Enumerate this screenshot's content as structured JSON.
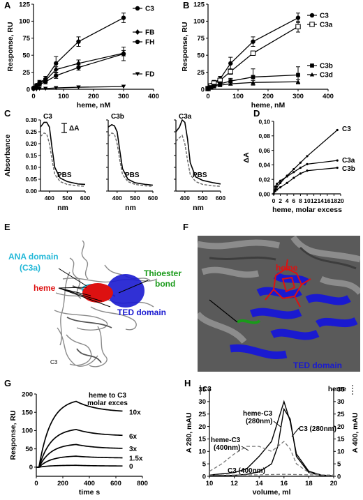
{
  "panels": {
    "A": {
      "label": "A"
    },
    "B": {
      "label": "B"
    },
    "C": {
      "label": "C"
    },
    "D": {
      "label": "D"
    },
    "E": {
      "label": "E"
    },
    "F": {
      "label": "F"
    },
    "G": {
      "label": "G"
    },
    "H": {
      "label": "H"
    }
  },
  "panel_e": {
    "labels": {
      "ana": "ANA domain",
      "ana_sub": "(C3a)",
      "heme": "heme",
      "thioester": "Thioester",
      "thioester_sub": "bond",
      "ted": "TED domain",
      "c3": "C3"
    },
    "colors": {
      "ana": "#22b8d8",
      "heme": "#dd1111",
      "thioester": "#1a9a1a",
      "ted": "#1a1ad0",
      "protein": "#777777"
    }
  },
  "panel_f": {
    "labels": {
      "heme": "heme",
      "ted": "TED domain"
    },
    "colors": {
      "heme": "#dd1111",
      "ted": "#1a1ad0",
      "background": "#5a5a5a"
    }
  },
  "chart_data": [
    {
      "panel": "A",
      "type": "line",
      "xlabel": "heme, nM",
      "ylabel": "Response, RU",
      "xlim": [
        0,
        400
      ],
      "ylim": [
        0,
        125
      ],
      "xticks": [
        0,
        100,
        200,
        300,
        400
      ],
      "yticks": [
        0,
        25,
        50,
        75,
        100,
        125
      ],
      "x": [
        0,
        10,
        20,
        40,
        75,
        150,
        300
      ],
      "legend_position": "right",
      "series": [
        {
          "name": "C3",
          "marker": "circle",
          "values": [
            2,
            6,
            10,
            15,
            38,
            70,
            105
          ],
          "errors": [
            0,
            2,
            3,
            4,
            10,
            7,
            7
          ]
        },
        {
          "name": "FB",
          "marker": "diamond",
          "values": [
            1,
            4,
            9,
            13,
            29,
            38,
            53
          ],
          "errors": [
            0,
            2,
            2,
            3,
            4,
            5,
            4
          ]
        },
        {
          "name": "FH",
          "marker": "circle",
          "values": [
            1,
            3,
            7,
            11,
            20,
            32,
            52
          ],
          "errors": [
            0,
            1,
            2,
            3,
            4,
            4,
            10
          ]
        },
        {
          "name": "FD",
          "marker": "triangle-down",
          "values": [
            0,
            0,
            1,
            1,
            2,
            3,
            4
          ],
          "errors": [
            0,
            0,
            0,
            0,
            0,
            0,
            0
          ]
        }
      ]
    },
    {
      "panel": "B",
      "type": "line",
      "xlabel": "heme, nM",
      "ylabel": "Response, RU",
      "xlim": [
        0,
        400
      ],
      "ylim": [
        0,
        125
      ],
      "xticks": [
        0,
        100,
        200,
        300,
        400
      ],
      "yticks": [
        0,
        25,
        50,
        75,
        100,
        125
      ],
      "x": [
        0,
        10,
        20,
        40,
        75,
        150,
        300
      ],
      "legend_position": "right",
      "series": [
        {
          "name": "C3",
          "marker": "circle",
          "values": [
            2,
            6,
            10,
            15,
            38,
            70,
            105
          ],
          "errors": [
            0,
            2,
            3,
            4,
            9,
            7,
            7
          ]
        },
        {
          "name": "C3a",
          "marker": "square-open",
          "values": [
            1,
            5,
            9,
            13,
            26,
            53,
            92
          ],
          "errors": [
            0,
            2,
            2,
            3,
            4,
            3,
            8
          ]
        },
        {
          "name": "C3b",
          "marker": "square",
          "values": [
            1,
            3,
            5,
            8,
            12,
            18,
            21
          ],
          "errors": [
            0,
            1,
            2,
            3,
            4,
            12,
            12
          ]
        },
        {
          "name": "C3d",
          "marker": "triangle",
          "values": [
            0,
            2,
            4,
            6,
            8,
            10,
            11
          ],
          "errors": [
            0,
            1,
            1,
            2,
            2,
            3,
            3
          ]
        }
      ]
    },
    {
      "panel": "C",
      "type": "line",
      "ylabel": "Absorbance",
      "xlabel": "nm",
      "xlim": [
        350,
        600
      ],
      "ylim": [
        0,
        0.3
      ],
      "xticks": [
        400,
        500,
        600
      ],
      "yticks": [
        0.0,
        0.05,
        0.1,
        0.15,
        0.2,
        0.25,
        0.3
      ],
      "ytick_labels": [
        "0.00",
        "0.05",
        "0.10",
        "0.15",
        "0.20",
        "0.25",
        "0.30"
      ],
      "scale_bar_label": "ΔA",
      "subplots": [
        {
          "title": "C3",
          "buffer_label": "PBS",
          "protein": {
            "x": [
              350,
              370,
              385,
              400,
              415,
              430,
              460,
              500,
              560,
              600
            ],
            "y": [
              0.27,
              0.29,
              0.29,
              0.27,
              0.18,
              0.1,
              0.055,
              0.04,
              0.03,
              0.028
            ]
          },
          "buffer": {
            "x": [
              350,
              370,
              385,
              400,
              415,
              430,
              460,
              500,
              560,
              600
            ],
            "y": [
              0.23,
              0.245,
              0.24,
              0.2,
              0.13,
              0.07,
              0.04,
              0.028,
              0.022,
              0.02
            ]
          }
        },
        {
          "title": "C3b",
          "buffer_label": "PBS",
          "protein": {
            "x": [
              350,
              370,
              385,
              400,
              415,
              430,
              460,
              500,
              560,
              600
            ],
            "y": [
              0.27,
              0.28,
              0.275,
              0.25,
              0.17,
              0.095,
              0.05,
              0.035,
              0.028,
              0.025
            ]
          },
          "buffer": {
            "x": [
              350,
              370,
              385,
              400,
              415,
              430,
              460,
              500,
              560,
              600
            ],
            "y": [
              0.23,
              0.245,
              0.24,
              0.2,
              0.13,
              0.07,
              0.04,
              0.028,
              0.022,
              0.02
            ]
          }
        },
        {
          "title": "C3a",
          "buffer_label": "PBS",
          "protein": {
            "x": [
              350,
              370,
              385,
              400,
              415,
              430,
              460,
              500,
              560,
              600
            ],
            "y": [
              0.25,
              0.27,
              0.3,
              0.29,
              0.22,
              0.12,
              0.06,
              0.045,
              0.035,
              0.03
            ]
          },
          "buffer": {
            "x": [
              350,
              370,
              385,
              400,
              415,
              430,
              460,
              500,
              560,
              600
            ],
            "y": [
              0.21,
              0.225,
              0.235,
              0.2,
              0.13,
              0.07,
              0.04,
              0.028,
              0.022,
              0.02
            ]
          }
        }
      ]
    },
    {
      "panel": "D",
      "type": "line",
      "xlabel": "heme, molar excess",
      "ylabel": "ΔA",
      "xlim": [
        0,
        20
      ],
      "ylim": [
        0,
        0.1
      ],
      "xticks": [
        0,
        2,
        4,
        6,
        8,
        10,
        12,
        14,
        16,
        18,
        20
      ],
      "yticks": [
        0.0,
        0.02,
        0.04,
        0.06,
        0.08,
        0.1
      ],
      "ytick_labels": [
        "0,00",
        "0,02",
        "0,04",
        "0,06",
        "0,08",
        "0,10"
      ],
      "series": [
        {
          "name": "C3",
          "x": [
            0,
            0.5,
            1,
            2,
            4,
            6,
            8,
            10,
            19
          ],
          "values": [
            0,
            0.006,
            0.01,
            0.015,
            0.025,
            0.034,
            0.043,
            0.052,
            0.088
          ]
        },
        {
          "name": "C3a",
          "x": [
            0,
            0.5,
            1,
            2,
            4,
            6,
            8,
            10,
            19
          ],
          "values": [
            0,
            0.01,
            0.014,
            0.018,
            0.024,
            0.03,
            0.036,
            0.041,
            0.046
          ]
        },
        {
          "name": "C3b",
          "x": [
            0,
            0.5,
            1,
            2,
            4,
            6,
            8,
            10,
            19
          ],
          "values": [
            0,
            0.004,
            0.006,
            0.009,
            0.015,
            0.022,
            0.028,
            0.032,
            0.036
          ]
        }
      ]
    },
    {
      "panel": "G",
      "type": "line",
      "xlabel": "time s",
      "ylabel": "Response, RU",
      "xlim": [
        0,
        800
      ],
      "ylim": [
        -25,
        200
      ],
      "xticks": [
        0,
        200,
        400,
        600,
        800
      ],
      "yticks": [
        0,
        50,
        100,
        150,
        200
      ],
      "legend_title": "heme to C3 molar exces",
      "series": [
        {
          "name": "10x",
          "peak": 180,
          "end": 150
        },
        {
          "name": "6x",
          "peak": 103,
          "end": 85
        },
        {
          "name": "3x",
          "peak": 62,
          "end": 50
        },
        {
          "name": "1.5x",
          "peak": 30,
          "end": 25
        },
        {
          "name": "0",
          "peak": 5,
          "end": 3
        }
      ],
      "injection_end": 300,
      "baseline_start": 20
    },
    {
      "panel": "H",
      "type": "line",
      "title": "C3",
      "right_title": "heme",
      "xlabel": "volume, ml",
      "ylabel": "A 280, mAU",
      "y2label": "A 400, mAU",
      "xlim": [
        10,
        20
      ],
      "ylim": [
        0,
        35
      ],
      "y2lim": [
        0,
        35
      ],
      "xticks": [
        10,
        12,
        14,
        16,
        18,
        20
      ],
      "yticks": [
        0,
        5,
        10,
        15,
        20,
        25,
        30,
        35
      ],
      "series": [
        {
          "name": "heme-C3 (280nm)",
          "x": [
            10,
            12,
            13,
            14,
            15,
            15.5,
            16,
            16.5,
            17,
            18,
            19,
            20
          ],
          "values": [
            0.5,
            1.5,
            3,
            8,
            14,
            22,
            30,
            22,
            9,
            2,
            0.5,
            0.2
          ]
        },
        {
          "name": "C3 (280nm)",
          "x": [
            10,
            12,
            13,
            14,
            15,
            15.5,
            16,
            16.5,
            17,
            18,
            19,
            20
          ],
          "values": [
            0.2,
            0.4,
            0.8,
            1.8,
            5,
            12,
            27,
            23,
            8,
            1.5,
            0.3,
            0.1
          ]
        },
        {
          "name": "heme-C3 (400nm)",
          "x": [
            10,
            11,
            12,
            13,
            14,
            15,
            16,
            16.5,
            17,
            18,
            19,
            20
          ],
          "values": [
            2,
            5,
            9,
            12,
            12,
            10,
            14,
            11,
            5,
            1.5,
            0.5,
            0.2
          ]
        },
        {
          "name": "C3 (400nm)",
          "x": [
            10,
            12,
            14,
            16,
            18,
            20
          ],
          "values": [
            0.5,
            0.5,
            0.6,
            0.8,
            0.6,
            0.5
          ]
        }
      ],
      "labels": {
        "heme_c3_280": [
          "heme-C3",
          "(280nm)"
        ],
        "c3_280": "C3 (280nm)",
        "heme_c3_400": [
          "heme-C3",
          "(400nm)"
        ],
        "c3_400": "C3 (400nm)"
      }
    }
  ]
}
